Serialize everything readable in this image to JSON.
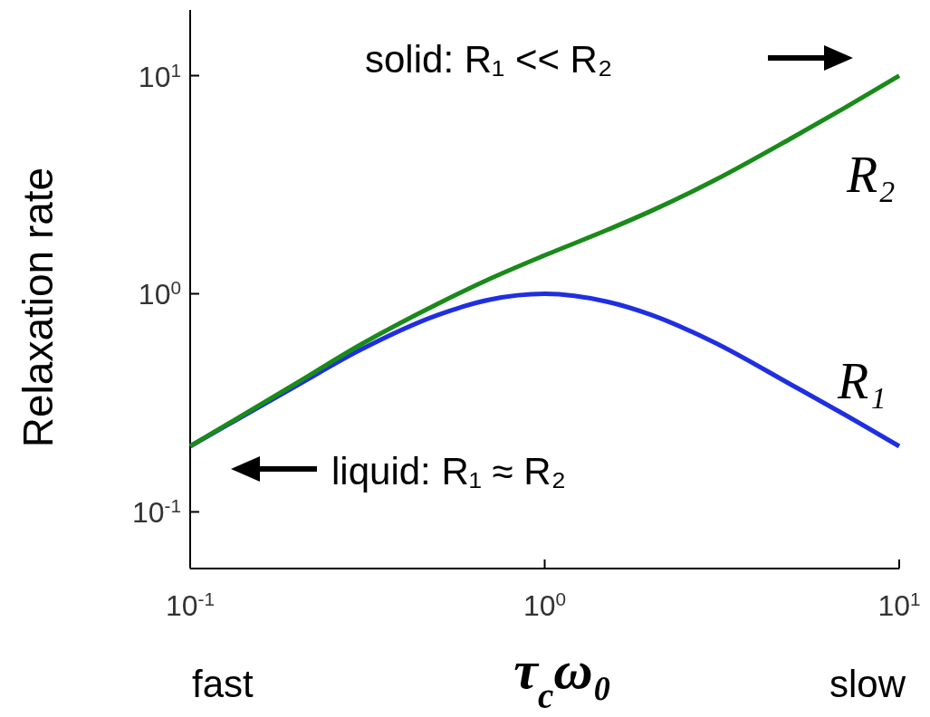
{
  "chart_data": {
    "type": "line",
    "ylabel": "Relaxation rate",
    "xlabel": "τ$_{c}$ω₀",
    "log": "xy",
    "xlim": [
      0.1,
      10
    ],
    "ylim": [
      0.055,
      20
    ],
    "xticks": [
      {
        "value": 0.1,
        "label": "10$^{-1}$"
      },
      {
        "value": 1,
        "label": "10$^{0}$"
      },
      {
        "value": 10,
        "label": "10$^{1}$"
      }
    ],
    "yticks": [
      {
        "value": 0.1,
        "label": "10$^{-1}$"
      },
      {
        "value": 1,
        "label": "10$^{0}$"
      },
      {
        "value": 10,
        "label": "10$^{1}$"
      }
    ],
    "x": [
      0.1,
      0.2,
      0.3,
      0.5,
      0.7,
      1,
      1.5,
      2,
      3,
      5,
      7,
      10
    ],
    "series": [
      {
        "name": "R₁",
        "color": "#1f2fe0",
        "values": [
          0.2,
          0.38,
          0.55,
          0.8,
          0.94,
          1,
          0.92,
          0.8,
          0.6,
          0.38,
          0.28,
          0.2
        ]
      },
      {
        "name": "R₂",
        "color": "#1a8a1a",
        "values": [
          0.2,
          0.39,
          0.58,
          0.9,
          1.17,
          1.5,
          1.96,
          2.4,
          3.3,
          5.2,
          7.1,
          10
        ]
      }
    ],
    "annotations": [
      "solid: R₁ << R₂",
      "liquid: R₁ ≈ R₂",
      "fast",
      "slow"
    ],
    "legend": false,
    "grid": false,
    "line_style": "solid"
  }
}
